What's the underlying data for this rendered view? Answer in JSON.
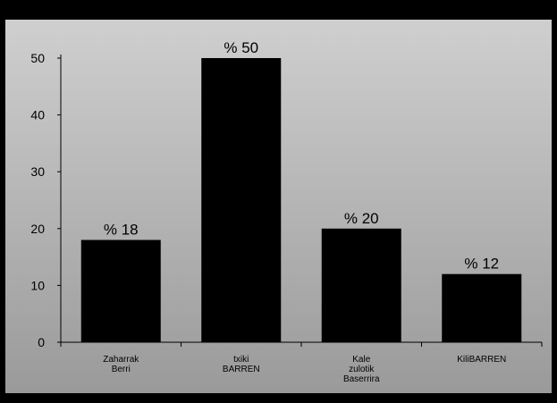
{
  "chart_data": {
    "type": "bar",
    "title": "",
    "xlabel": "",
    "ylabel": "",
    "categories": [
      [
        "Zaharrak",
        "Berri"
      ],
      [
        "txiki",
        "BARREN"
      ],
      [
        "Kale",
        "zulotik",
        "Baserrira"
      ],
      [
        "KiliBARREN"
      ]
    ],
    "values": [
      18,
      50,
      20,
      12
    ],
    "data_labels": [
      "% 18",
      "% 50",
      "% 20",
      "% 12"
    ],
    "y_ticks": [
      0,
      10,
      20,
      30,
      40,
      50
    ],
    "ylim": [
      0,
      50
    ],
    "grid": false,
    "legend": "none",
    "colors": {
      "bar": "#000000",
      "axis": "#000000",
      "frame": "#000000",
      "panel_top": "#cfcfcf",
      "panel_bottom": "#9a9a9a"
    }
  }
}
